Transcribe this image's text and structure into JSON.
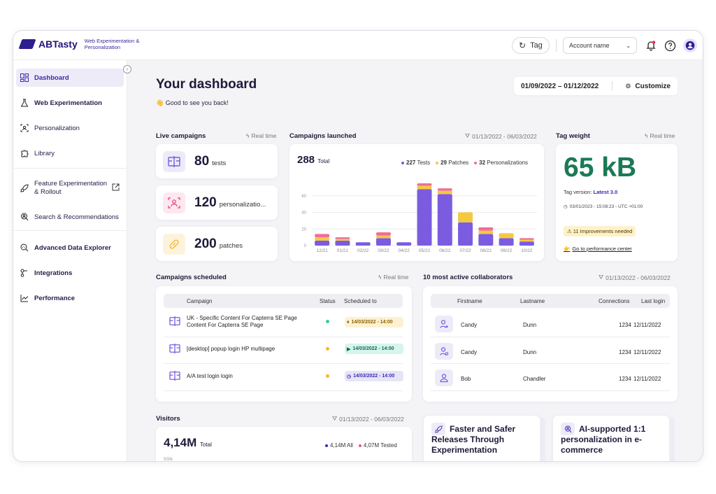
{
  "header": {
    "brand": "ABTasty",
    "brand_sub": "Web Experimentation & Personalization",
    "tag_label": "Tag",
    "account_label": "Account name"
  },
  "sidebar": {
    "items": [
      {
        "label": "Dashboard",
        "icon": "dashboard-icon"
      },
      {
        "label": "Web Experimentation",
        "icon": "flask-icon"
      },
      {
        "label": "Personalization",
        "icon": "person-frame-icon"
      },
      {
        "label": "Library",
        "icon": "puzzle-icon"
      },
      {
        "label": "Feature Experimentation & Rollout",
        "icon": "rocket-icon"
      },
      {
        "label": "Search & Recommendations",
        "icon": "search-person-icon"
      },
      {
        "label": "Advanced Data Explorer",
        "icon": "data-search-icon"
      },
      {
        "label": "Integrations",
        "icon": "integrations-icon"
      },
      {
        "label": "Performance",
        "icon": "line-chart-icon"
      }
    ]
  },
  "main": {
    "title": "Your dashboard",
    "subtitle": "👋 Good to see you back!",
    "date_start": "01/09/2022",
    "date_sep": "–",
    "date_end": "01/12/2022",
    "customize_label": "Customize"
  },
  "live": {
    "label": "Live campaigns",
    "meta": "Real time",
    "cards": [
      {
        "value": "80",
        "unit": "tests",
        "color": "#7b5ce0"
      },
      {
        "value": "120",
        "unit": "personalizatio...",
        "color": "#e8538f"
      },
      {
        "value": "200",
        "unit": "patches",
        "color": "#f5b92f"
      }
    ]
  },
  "launched": {
    "label": "Campaigns launched",
    "meta": "01/13/2022 - 06/03/2022",
    "total": "288",
    "total_label": "Total",
    "legend": [
      {
        "value": "227",
        "label": "Tests",
        "color": "#7b5ce0"
      },
      {
        "value": "29",
        "label": "Patches",
        "color": "#f5c93f"
      },
      {
        "value": "32",
        "label": "Personalizations",
        "color": "#ef6e9a"
      }
    ]
  },
  "chart_data": {
    "type": "bar",
    "stacked": true,
    "categories": [
      "12/21",
      "01/21",
      "02/22",
      "03/22",
      "04/22",
      "05/22",
      "06/22",
      "07/22",
      "08/22",
      "09/22",
      "10/22"
    ],
    "yticks": [
      "0",
      "20",
      "40",
      "60"
    ],
    "ylim": [
      0,
      80
    ],
    "series": [
      {
        "name": "Tests",
        "color": "#7b5ce0",
        "values": [
          6,
          6,
          4,
          9,
          4,
          68,
          62,
          28,
          14,
          9,
          5
        ]
      },
      {
        "name": "Patches",
        "color": "#f5c93f",
        "values": [
          4,
          2,
          0,
          3,
          0,
          4,
          4,
          12,
          4,
          6,
          2
        ]
      },
      {
        "name": "Personalizations",
        "color": "#ef6e9a",
        "values": [
          4,
          2,
          0,
          4,
          0,
          3,
          3,
          0,
          4,
          0,
          2
        ]
      }
    ]
  },
  "tag": {
    "label": "Tag weight",
    "meta": "Real time",
    "value": "65 kB",
    "version_prefix": "Tag version:",
    "version_link": "Latest 3.0",
    "timestamp": "03/01/2023 - 15:08:23 - UTC +01:00",
    "improvements": "⚠ 11 Improvements needed",
    "perf_link": "Go to performance center"
  },
  "scheduled": {
    "label": "Campaigns scheduled",
    "meta": "Real time",
    "headers": {
      "campaign": "Campaign",
      "status": "Status",
      "scheduled": "Scheduled to"
    },
    "rows": [
      {
        "name": "UK - Specific Content For Capterra SE Page Content For Capterra SE Page",
        "status_color": "#3cc9a0",
        "date": "14/03/2022 - 14:00",
        "badge_bg": "#fdf1d2",
        "badge_color": "#8a6400"
      },
      {
        "name": "[desktop] popup login HP multipage",
        "status_color": "#f5b92f",
        "date": "14/03/2022 - 14:00",
        "badge_bg": "#d6f5ec",
        "badge_color": "#0e6b54"
      },
      {
        "name": "A/A test login login",
        "status_color": "#f5b92f",
        "date": "14/03/2022 - 14:00",
        "badge_bg": "#e6e4f8",
        "badge_color": "#3b2ab0"
      }
    ]
  },
  "collab": {
    "label": "10 most active collaborators",
    "meta": "01/13/2022 - 06/03/2022",
    "headers": {
      "first": "Firstname",
      "last": "Lastname",
      "conn": "Connections",
      "login": "Last login"
    },
    "rows": [
      {
        "first": "Candy",
        "last": "Dunn",
        "conn": "1234",
        "login": "12/11/2022"
      },
      {
        "first": "Candy",
        "last": "Dunn",
        "conn": "1234",
        "login": "12/11/2022"
      },
      {
        "first": "Bob",
        "last": "Chandler",
        "conn": "1234",
        "login": "12/11/2022"
      }
    ]
  },
  "visitors": {
    "label": "Visitors",
    "meta": "01/13/2022 - 06/03/2022",
    "value": "4,14M",
    "value_label": "Total",
    "legend_all": "4,14M All",
    "legend_tested": "4,07M Tested",
    "ytick": "500k"
  },
  "promos": [
    {
      "title": "Faster and Safer Releases Through Experimentation"
    },
    {
      "title": "AI-supported 1:1 personalization in e-commerce"
    }
  ]
}
